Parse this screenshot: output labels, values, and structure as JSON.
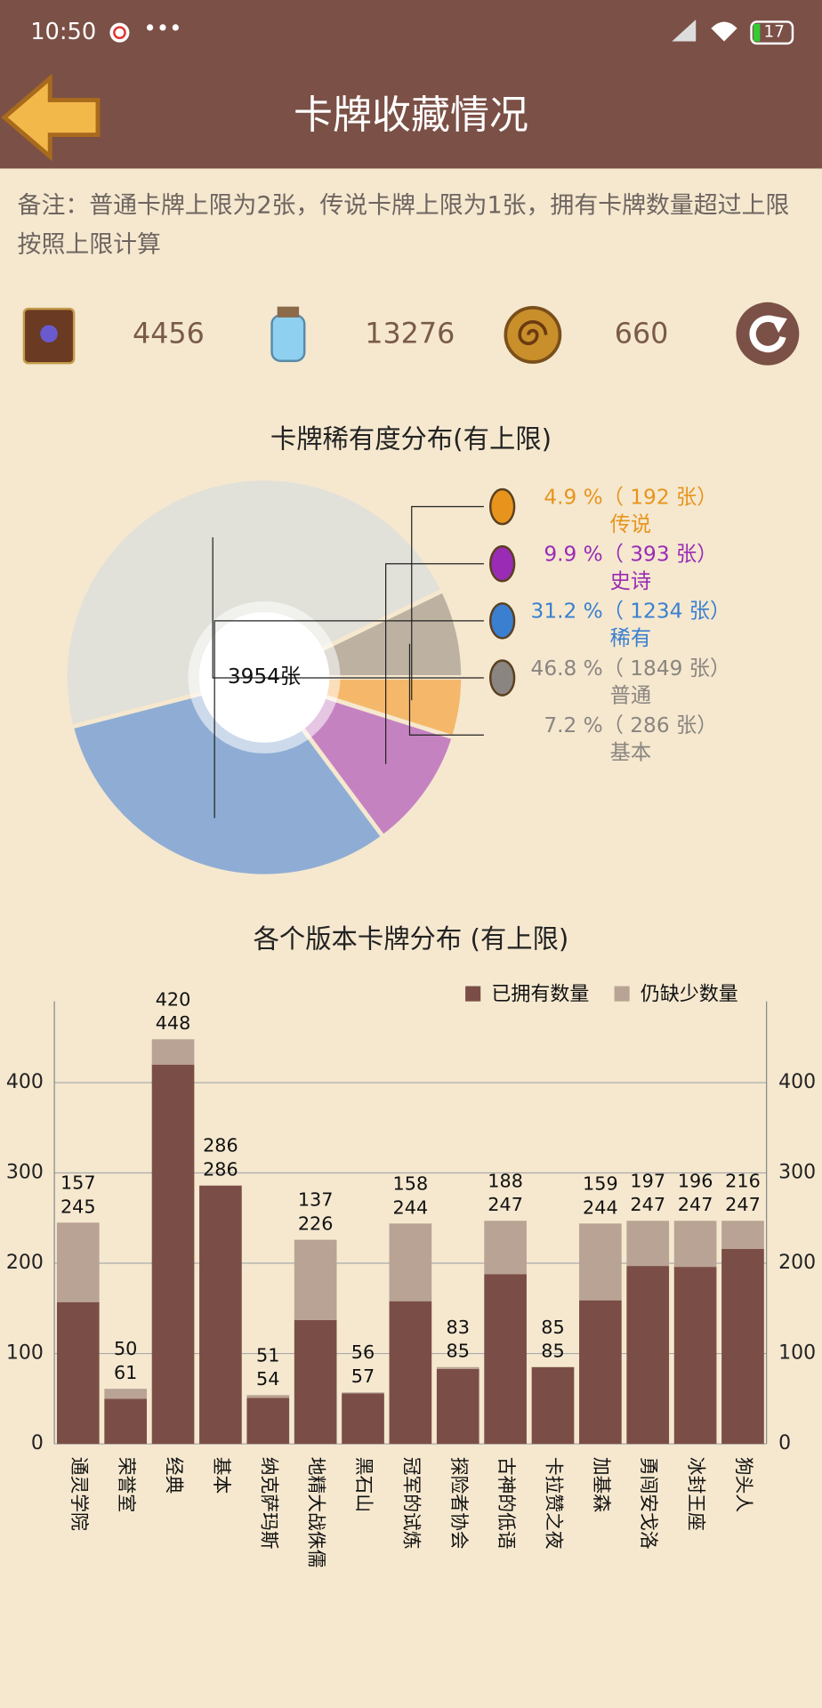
{
  "status_bar": {
    "time": "10:50",
    "battery": "17"
  },
  "header": {
    "title": "卡牌收藏情况"
  },
  "note": "备注：普通卡牌上限为2张，传说卡牌上限为1张，拥有卡牌数量超过上限按照上限计算",
  "stats": [
    4456,
    13276,
    660
  ],
  "chart_data": [
    {
      "type": "pie",
      "title": "卡牌稀有度分布(有上限)",
      "center_label": "3954张",
      "categories": [
        "传说",
        "史诗",
        "稀有",
        "普通",
        "基本"
      ],
      "values": [
        4.9,
        9.9,
        31.2,
        46.8,
        7.2
      ],
      "value_labels": [
        "4.9 %（ 192 张）",
        "9.9 %（ 393 张）",
        "31.2 %（ 1234 张）",
        "46.8 %（ 1849 张）",
        "7.2 %（ 286 张）"
      ],
      "colors": [
        "#f5b86a",
        "#c582c1",
        "#8fadd4",
        "#e1e0d9",
        "#bdb2a2"
      ],
      "label_colors": [
        "#e8941c",
        "#9a2bb5",
        "#3a7fd0",
        "#8a8580",
        "#8a8580"
      ]
    },
    {
      "type": "stacked_bar",
      "title": "各个版本卡牌分布 (有上限)",
      "categories": [
        "通灵学院",
        "荣誉室",
        "经典",
        "基本",
        "纳克萨玛斯",
        "地精大战侏儒",
        "黑石山",
        "冠军的试炼",
        "探险者协会",
        "古神的低语",
        "卡拉赞之夜",
        "加基森",
        "勇闯安戈洛",
        "冰封王座",
        "狗头人"
      ],
      "series": [
        {
          "name": "已拥有数量",
          "color": "#7a4e46",
          "values": [
            157,
            50,
            420,
            286,
            51,
            137,
            56,
            158,
            83,
            188,
            85,
            159,
            197,
            196,
            216
          ]
        },
        {
          "name": "仍缺少数量",
          "color": "#b9a394",
          "values": [
            88,
            11,
            28,
            0,
            3,
            89,
            1,
            86,
            2,
            59,
            0,
            85,
            50,
            51,
            31
          ]
        }
      ],
      "totals": [
        245,
        61,
        448,
        286,
        54,
        226,
        57,
        244,
        85,
        247,
        85,
        244,
        247,
        247,
        247
      ],
      "ylim": [
        0,
        490
      ],
      "yticks": [
        0,
        100,
        200,
        300,
        400
      ],
      "grid": true
    }
  ]
}
